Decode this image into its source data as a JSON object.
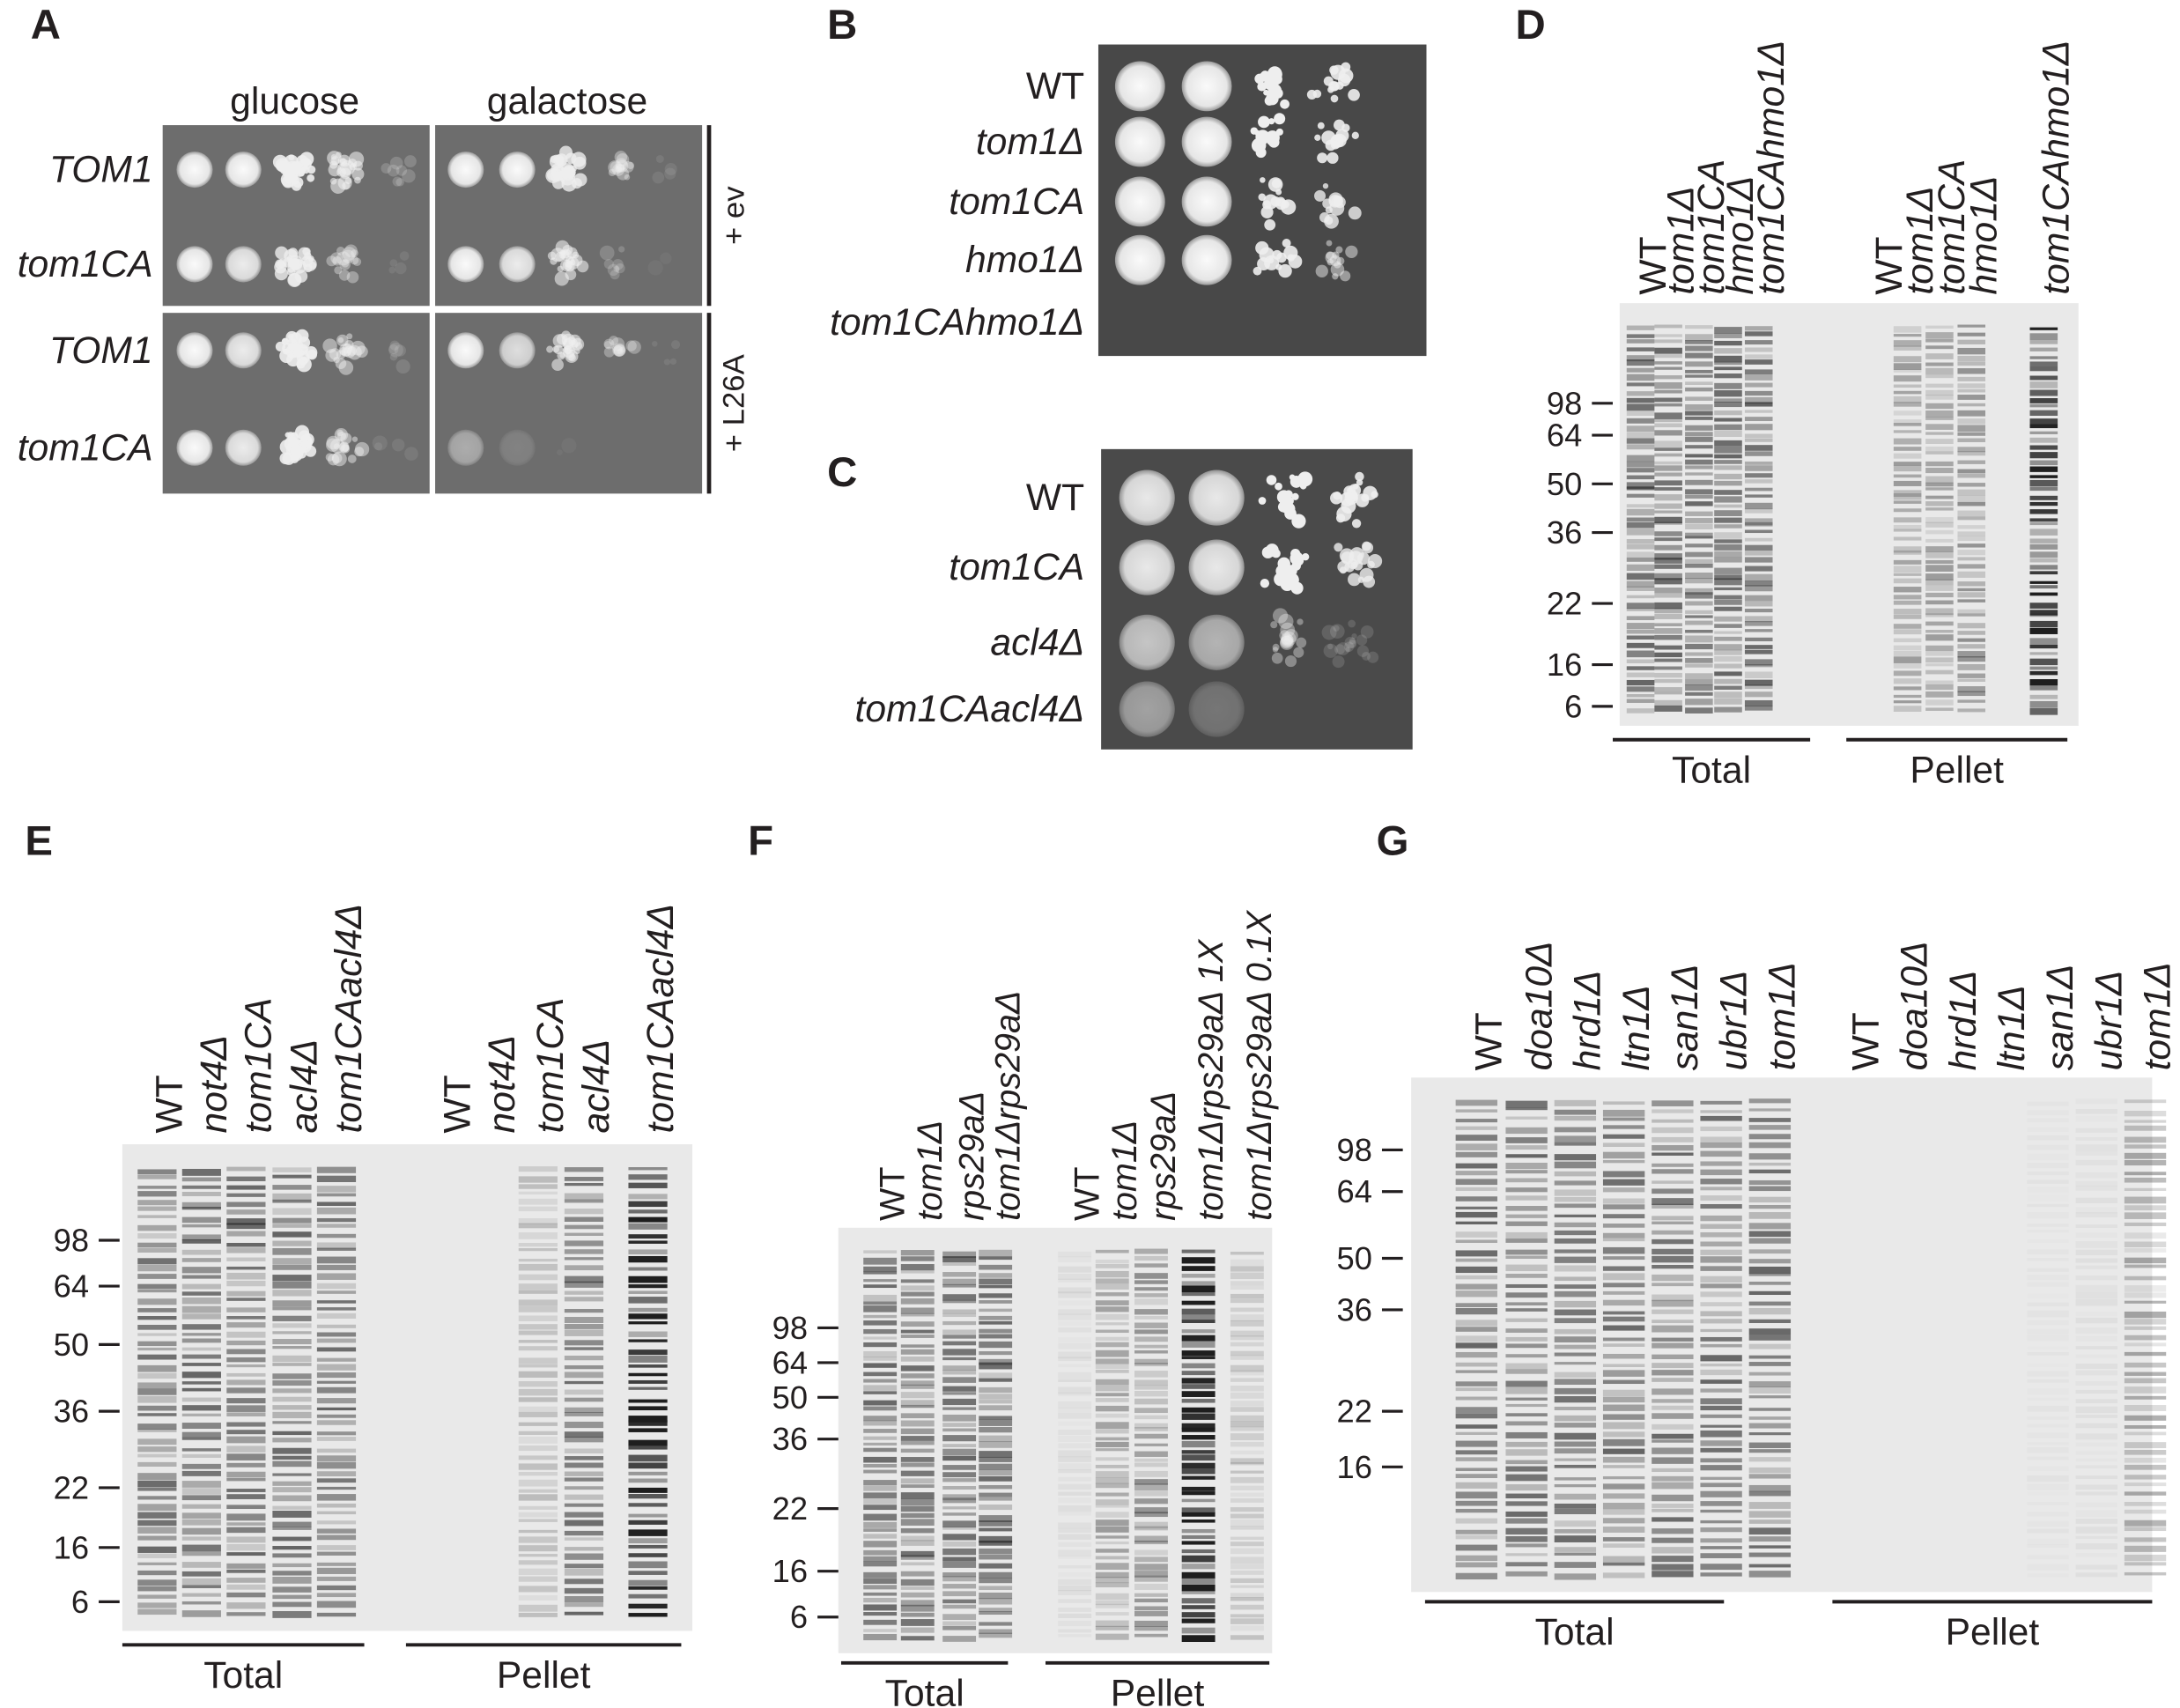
{
  "panels": {
    "A": {
      "label": "A",
      "media": [
        "glucose",
        "galactose"
      ],
      "strains": [
        "TOM1",
        "tom1CA",
        "TOM1",
        "tom1CA"
      ],
      "conditions": [
        "+ ev",
        "+ L26A"
      ]
    },
    "B": {
      "label": "B",
      "strains": [
        "WT",
        "tom1Δ",
        "tom1CA",
        "hmo1Δ",
        "tom1CAhmo1Δ"
      ]
    },
    "C": {
      "label": "C",
      "strains": [
        "WT",
        "tom1CA",
        "acl4Δ",
        "tom1CAacl4Δ"
      ]
    },
    "D": {
      "label": "D",
      "lanes": [
        "WT",
        "tom1Δ",
        "tom1CA",
        "hmo1Δ",
        "tom1CAhmo1Δ",
        "WT",
        "tom1Δ",
        "tom1CA",
        "hmo1Δ",
        "tom1CAhmo1Δ"
      ],
      "markers": [
        "98",
        "64",
        "50",
        "36",
        "22",
        "16",
        "6"
      ],
      "groups": [
        "Total",
        "Pellet"
      ]
    },
    "E": {
      "label": "E",
      "lanes": [
        "WT",
        "not4Δ",
        "tom1CA",
        "acl4Δ",
        "tom1CAacl4Δ",
        "WT",
        "not4Δ",
        "tom1CA",
        "acl4Δ",
        "tom1CAacl4Δ"
      ],
      "markers": [
        "98",
        "64",
        "50",
        "36",
        "22",
        "16",
        "6"
      ],
      "groups": [
        "Total",
        "Pellet"
      ]
    },
    "F": {
      "label": "F",
      "lanes": [
        "WT",
        "tom1Δ",
        "rps29aΔ",
        "tom1Δrps29aΔ",
        "WT",
        "tom1Δ",
        "rps29aΔ",
        "tom1Δrps29aΔ 1X",
        "tom1Δrps29aΔ 0.1X"
      ],
      "markers": [
        "98",
        "64",
        "50",
        "36",
        "22",
        "16",
        "6"
      ],
      "groups": [
        "Total",
        "Pellet"
      ]
    },
    "G": {
      "label": "G",
      "lanes": [
        "WT",
        "doa10Δ",
        "hrd1Δ",
        "ltn1Δ",
        "san1Δ",
        "ubr1Δ",
        "tom1Δ",
        "WT",
        "doa10Δ",
        "hrd1Δ",
        "ltn1Δ",
        "san1Δ",
        "ubr1Δ",
        "tom1Δ"
      ],
      "markers": [
        "98",
        "64",
        "50",
        "36",
        "22",
        "16"
      ],
      "groups": [
        "Total",
        "Pellet"
      ]
    }
  }
}
